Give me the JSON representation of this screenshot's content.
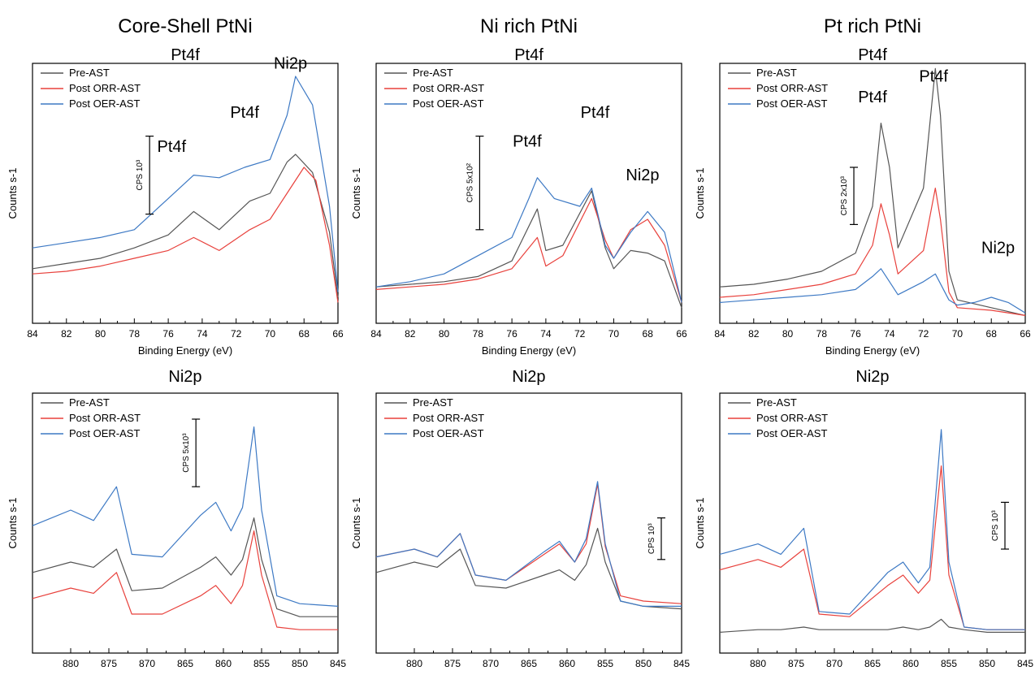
{
  "column_titles": [
    "Core-Shell PtNi",
    "Ni rich PtNi",
    "Pt rich PtNi"
  ],
  "colors": {
    "Pre-AST": "#555555",
    "Post ORR-AST": "#e8413c",
    "Post OER-AST": "#3d79c4"
  },
  "chart_data": [
    {
      "type": "line",
      "title": "Pt4f",
      "xlabel": "Binding Energy (eV)",
      "ylabel": "Counts s-1",
      "xlim": [
        84,
        66
      ],
      "ylim": [
        0,
        100
      ],
      "xticks": [
        84,
        82,
        80,
        78,
        76,
        74,
        72,
        70,
        68,
        66
      ],
      "legend": [
        "Pre-AST",
        "Post ORR-AST",
        "Post OER-AST"
      ],
      "legend_position": "top-left",
      "scale_bar": {
        "label": "CPS 10³",
        "y_range": [
          42,
          72
        ]
      },
      "annotations": [
        {
          "text": "Pt4f",
          "x": 75.8,
          "y": 66
        },
        {
          "text": "Pt4f",
          "x": 71.5,
          "y": 79
        },
        {
          "text": "Ni2p",
          "x": 68.8,
          "y": 98
        }
      ],
      "series": [
        {
          "name": "Pre-AST",
          "x": [
            84,
            82,
            80,
            78,
            76,
            74.5,
            73,
            71.2,
            70,
            69,
            68.5,
            67.5,
            66.5,
            66
          ],
          "y": [
            21,
            23,
            25,
            29,
            34,
            43,
            36,
            47,
            50,
            62,
            65,
            58,
            35,
            10
          ]
        },
        {
          "name": "Post ORR-AST",
          "x": [
            84,
            82,
            80,
            78,
            76,
            74.5,
            73,
            71.2,
            70,
            69,
            68,
            67.3,
            66.5,
            66
          ],
          "y": [
            19,
            20,
            22,
            25,
            28,
            33,
            28,
            36,
            40,
            50,
            60,
            55,
            30,
            8
          ]
        },
        {
          "name": "Post OER-AST",
          "x": [
            84,
            82,
            80,
            78,
            76,
            74.5,
            73,
            71.5,
            70,
            69,
            68.5,
            67.5,
            66.5,
            66
          ],
          "y": [
            29,
            31,
            33,
            36,
            48,
            57,
            56,
            60,
            63,
            80,
            95,
            84,
            45,
            12
          ]
        }
      ]
    },
    {
      "type": "line",
      "title": "Pt4f",
      "xlabel": "Binding Energy (eV)",
      "ylabel": "Counts s-1",
      "xlim": [
        84,
        66
      ],
      "ylim": [
        0,
        100
      ],
      "xticks": [
        84,
        82,
        80,
        78,
        76,
        74,
        72,
        70,
        68,
        66
      ],
      "legend": [
        "Pre-AST",
        "Post ORR-AST",
        "Post OER-AST"
      ],
      "legend_position": "top-left",
      "scale_bar": {
        "label": "CPS 5x10²",
        "y_range": [
          36,
          72
        ]
      },
      "annotations": [
        {
          "text": "Pt4f",
          "x": 75.1,
          "y": 68
        },
        {
          "text": "Pt4f",
          "x": 71.1,
          "y": 79
        },
        {
          "text": "Ni2p",
          "x": 68.3,
          "y": 55
        }
      ],
      "series": [
        {
          "name": "Pre-AST",
          "x": [
            84,
            82,
            80,
            78,
            76,
            74.5,
            74,
            73,
            71.3,
            70.5,
            70,
            69,
            68,
            67,
            66
          ],
          "y": [
            14,
            15,
            16,
            18,
            24,
            44,
            28,
            30,
            51,
            29,
            21,
            28,
            27,
            24,
            6
          ]
        },
        {
          "name": "Post ORR-AST",
          "x": [
            84,
            82,
            80,
            78,
            76,
            74.5,
            74,
            73,
            71.3,
            70.5,
            70,
            69,
            68,
            67,
            66
          ],
          "y": [
            13,
            14,
            15,
            17,
            21,
            33,
            22,
            26,
            48,
            32,
            25,
            36,
            40,
            30,
            8
          ]
        },
        {
          "name": "Post OER-AST",
          "x": [
            84,
            82,
            80,
            78,
            76,
            75,
            74.5,
            73.5,
            72,
            71.3,
            70.5,
            70,
            69,
            68,
            67,
            66
          ],
          "y": [
            14,
            16,
            19,
            26,
            33,
            48,
            56,
            48,
            45,
            52,
            30,
            25,
            35,
            43,
            35,
            8
          ]
        }
      ]
    },
    {
      "type": "line",
      "title": "Pt4f",
      "xlabel": "Binding Energy (eV)",
      "ylabel": "Counts s-1",
      "xlim": [
        84,
        66
      ],
      "ylim": [
        0,
        100
      ],
      "xticks": [
        84,
        82,
        80,
        78,
        76,
        74,
        72,
        70,
        68,
        66
      ],
      "legend": [
        "Pre-AST",
        "Post ORR-AST",
        "Post OER-AST"
      ],
      "legend_position": "top-left",
      "scale_bar": {
        "label": "CPS 2x10³",
        "y_range": [
          38,
          60
        ]
      },
      "annotations": [
        {
          "text": "Pt4f",
          "x": 75,
          "y": 85
        },
        {
          "text": "Pt4f",
          "x": 71.4,
          "y": 93
        },
        {
          "text": "Ni2p",
          "x": 67.6,
          "y": 27
        }
      ],
      "series": [
        {
          "name": "Pre-AST",
          "x": [
            84,
            82,
            80,
            78,
            76,
            75,
            74.5,
            74,
            73.5,
            72,
            71.3,
            71,
            70.5,
            70,
            68,
            66
          ],
          "y": [
            14,
            15,
            17,
            20,
            27,
            45,
            77,
            60,
            29,
            52,
            98,
            80,
            20,
            9,
            6,
            3
          ]
        },
        {
          "name": "Post ORR-AST",
          "x": [
            84,
            82,
            80,
            78,
            76,
            75,
            74.5,
            74,
            73.5,
            72,
            71.3,
            71,
            70.5,
            70,
            68,
            66
          ],
          "y": [
            10,
            11,
            13,
            15,
            19,
            30,
            46,
            34,
            19,
            28,
            52,
            40,
            12,
            6,
            5,
            3
          ]
        },
        {
          "name": "Post OER-AST",
          "x": [
            84,
            82,
            80,
            78,
            76,
            75,
            74.5,
            74,
            73.5,
            72,
            71.3,
            70.5,
            70,
            69,
            68,
            67,
            66
          ],
          "y": [
            8,
            9,
            10,
            11,
            13,
            18,
            21,
            16,
            11,
            16,
            19,
            9,
            7,
            8,
            10,
            8,
            4
          ]
        }
      ]
    },
    {
      "type": "line",
      "title": "Ni2p",
      "xlabel": "Binding Energy (eV)",
      "ylabel": "Counts s-1",
      "xlim": [
        885,
        845
      ],
      "ylim": [
        0,
        100
      ],
      "xticks": [
        880,
        875,
        870,
        865,
        860,
        855,
        850,
        845
      ],
      "legend": [
        "Pre-AST",
        "Post ORR-AST",
        "Post OER-AST"
      ],
      "legend_position": "top-left",
      "scale_bar": {
        "label": "CPS 5x10³",
        "y_range": [
          64,
          90
        ]
      },
      "annotations": [],
      "series": [
        {
          "name": "Pre-AST",
          "x": [
            885,
            880,
            877,
            874,
            872,
            868,
            863,
            861,
            859,
            857.5,
            856,
            855,
            853,
            850,
            845
          ],
          "y": [
            31,
            35,
            33,
            40,
            24,
            25,
            33,
            37,
            30,
            36,
            52,
            36,
            17,
            14,
            14
          ]
        },
        {
          "name": "Post ORR-AST",
          "x": [
            885,
            880,
            877,
            874,
            872,
            868,
            863,
            861,
            859,
            857.5,
            856,
            855,
            853,
            850,
            845
          ],
          "y": [
            21,
            25,
            23,
            31,
            15,
            15,
            22,
            26,
            19,
            26,
            47,
            30,
            10,
            9,
            9
          ]
        },
        {
          "name": "Post OER-AST",
          "x": [
            885,
            880,
            877,
            874,
            872,
            868,
            863,
            861,
            859,
            857.5,
            856,
            855,
            853,
            850,
            845
          ],
          "y": [
            49,
            55,
            51,
            64,
            38,
            37,
            53,
            58,
            47,
            56,
            87,
            55,
            22,
            19,
            18
          ]
        }
      ]
    },
    {
      "type": "line",
      "title": "Ni2p",
      "xlabel": "Binding Energy (eV)",
      "ylabel": "Counts s-1",
      "xlim": [
        885,
        845
      ],
      "ylim": [
        0,
        100
      ],
      "xticks": [
        880,
        875,
        870,
        865,
        860,
        855,
        850,
        845
      ],
      "legend": [
        "Pre-AST",
        "Post ORR-AST",
        "Post OER-AST"
      ],
      "legend_position": "bottom-right",
      "scale_bar": {
        "label": "CPS 10³",
        "y_range": [
          36,
          52
        ]
      },
      "annotations": [],
      "series": [
        {
          "name": "Pre-AST",
          "x": [
            885,
            880,
            877,
            874,
            872,
            868,
            863,
            861,
            859,
            857.5,
            856,
            855,
            853,
            850,
            845
          ],
          "y": [
            31,
            35,
            33,
            40,
            26,
            25,
            30,
            32,
            28,
            34,
            48,
            35,
            20,
            18,
            17
          ]
        },
        {
          "name": "Post ORR-AST",
          "x": [
            885,
            880,
            877,
            874,
            872,
            868,
            863,
            861,
            859,
            857.5,
            856,
            855,
            853,
            850,
            845
          ],
          "y": [
            37,
            40,
            37,
            46,
            30,
            28,
            38,
            42,
            35,
            42,
            65,
            41,
            22,
            20,
            19
          ]
        },
        {
          "name": "Post OER-AST",
          "x": [
            885,
            880,
            877,
            874,
            872,
            868,
            863,
            861,
            859,
            857.5,
            856,
            855,
            853,
            850,
            845
          ],
          "y": [
            37,
            40,
            37,
            46,
            30,
            28,
            39,
            43,
            35,
            44,
            66,
            42,
            20,
            18,
            18
          ]
        }
      ]
    },
    {
      "type": "line",
      "title": "Ni2p",
      "xlabel": "Binding Energy (eV)",
      "ylabel": "Counts s-1",
      "xlim": [
        885,
        845
      ],
      "ylim": [
        0,
        100
      ],
      "xticks": [
        880,
        875,
        870,
        865,
        860,
        855,
        850,
        845
      ],
      "legend": [
        "Pre-AST",
        "Post ORR-AST",
        "Post OER-AST"
      ],
      "legend_position": "bottom-right",
      "scale_bar": {
        "label": "CPS 10³",
        "y_range": [
          40,
          58
        ]
      },
      "annotations": [],
      "series": [
        {
          "name": "Pre-AST",
          "x": [
            885,
            880,
            877,
            874,
            872,
            868,
            863,
            861,
            859,
            857.5,
            856,
            855,
            853,
            850,
            845
          ],
          "y": [
            8,
            9,
            9,
            10,
            9,
            9,
            9,
            10,
            9,
            10,
            13,
            10,
            9,
            8,
            8
          ]
        },
        {
          "name": "Post ORR-AST",
          "x": [
            885,
            880,
            877,
            874,
            872,
            868,
            863,
            861,
            859,
            857.5,
            856,
            855,
            853,
            850,
            845
          ],
          "y": [
            32,
            36,
            33,
            40,
            15,
            14,
            26,
            30,
            23,
            28,
            72,
            30,
            10,
            9,
            9
          ]
        },
        {
          "name": "Post OER-AST",
          "x": [
            885,
            880,
            877,
            874,
            872,
            868,
            863,
            861,
            859,
            857.5,
            856,
            855,
            853,
            850,
            845
          ],
          "y": [
            38,
            42,
            38,
            48,
            16,
            15,
            31,
            35,
            27,
            33,
            86,
            35,
            10,
            9,
            9
          ]
        }
      ]
    }
  ]
}
